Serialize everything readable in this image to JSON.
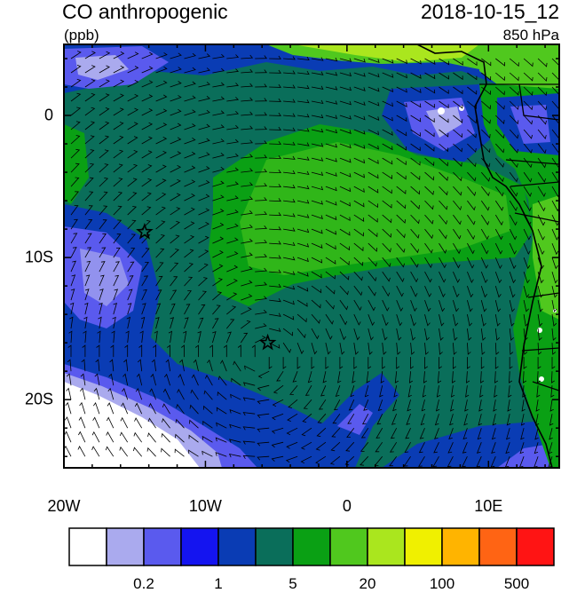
{
  "title": "CO anthropogenic",
  "datetime": "2018-10-15_12",
  "units": "(ppb)",
  "level": "850 hPa",
  "axes": {
    "lon_ticks": [
      "20W",
      "10W",
      "0",
      "10E"
    ],
    "lat_ticks": [
      "0",
      "10S",
      "20S"
    ]
  },
  "colorbar": {
    "colors": [
      "#ffffff",
      "#aaaaee",
      "#5a5aee",
      "#1414f0",
      "#0a3cb4",
      "#0a6e5a",
      "#0aa014",
      "#50c81e",
      "#aae61e",
      "#f0f000",
      "#ffb400",
      "#ff6414",
      "#ff1414"
    ],
    "labels": [
      "0.2",
      "1",
      "5",
      "20",
      "100",
      "500"
    ]
  },
  "markers": [
    {
      "name": "star-marker-1",
      "lon": -14.3,
      "lat": -8.2
    },
    {
      "name": "star-marker-2",
      "lon": -5.6,
      "lat": -16.0
    }
  ]
}
